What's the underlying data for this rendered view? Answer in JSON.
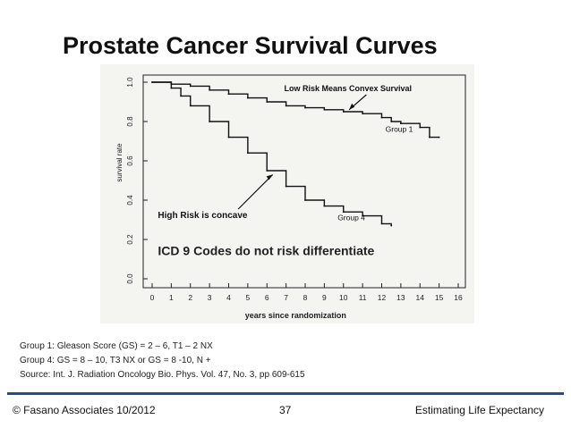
{
  "title": "Prostate Cancer Survival Curves",
  "chart_data": {
    "type": "line",
    "title": "Prostate Cancer Survival Curves",
    "xlabel": "years since randomization",
    "ylabel": "survival rate",
    "xlim": [
      0,
      16
    ],
    "ylim": [
      0,
      1.0
    ],
    "x_ticks": [
      "0",
      "1",
      "2",
      "3",
      "4",
      "5",
      "6",
      "7",
      "8",
      "9",
      "10",
      "11",
      "12",
      "13",
      "14",
      "15",
      "16"
    ],
    "y_ticks": [
      "0.0",
      "0.2",
      "0.4",
      "0.6",
      "0.8",
      "1.0"
    ],
    "series": [
      {
        "name": "Group 1",
        "x": [
          0,
          1,
          2,
          3,
          4,
          5,
          6,
          7,
          8,
          9,
          10,
          11,
          12,
          12.5,
          13,
          14,
          14.5,
          15
        ],
        "values": [
          1.0,
          0.99,
          0.98,
          0.96,
          0.94,
          0.92,
          0.9,
          0.88,
          0.87,
          0.86,
          0.85,
          0.84,
          0.82,
          0.8,
          0.79,
          0.77,
          0.72,
          0.72
        ]
      },
      {
        "name": "Group 4",
        "x": [
          0,
          1,
          1.5,
          2,
          3,
          4,
          5,
          6,
          7,
          8,
          9,
          10,
          11,
          12,
          12.5
        ],
        "values": [
          1.0,
          0.97,
          0.93,
          0.88,
          0.8,
          0.72,
          0.64,
          0.55,
          0.47,
          0.4,
          0.37,
          0.34,
          0.32,
          0.28,
          0.27
        ]
      }
    ],
    "annotations": {
      "low_risk": "Low Risk Means Convex Survival",
      "high_risk": "High Risk is concave",
      "icd": "ICD 9 Codes do not risk differentiate"
    }
  },
  "notes": [
    "Group 1: Gleason Score (GS) = 2 – 6, T1 – 2 NX",
    "Group 4: GS = 8 – 10, T3 NX or GS = 8 -10, N +",
    "Source: Int. J. Radiation Oncology Bio. Phys. Vol. 47, No. 3, pp 609-615"
  ],
  "footer": {
    "left": "© Fasano Associates 10/2012",
    "page": "37",
    "right": "Estimating Life Expectancy"
  },
  "colors": {
    "accent": "#1f4e8c"
  }
}
